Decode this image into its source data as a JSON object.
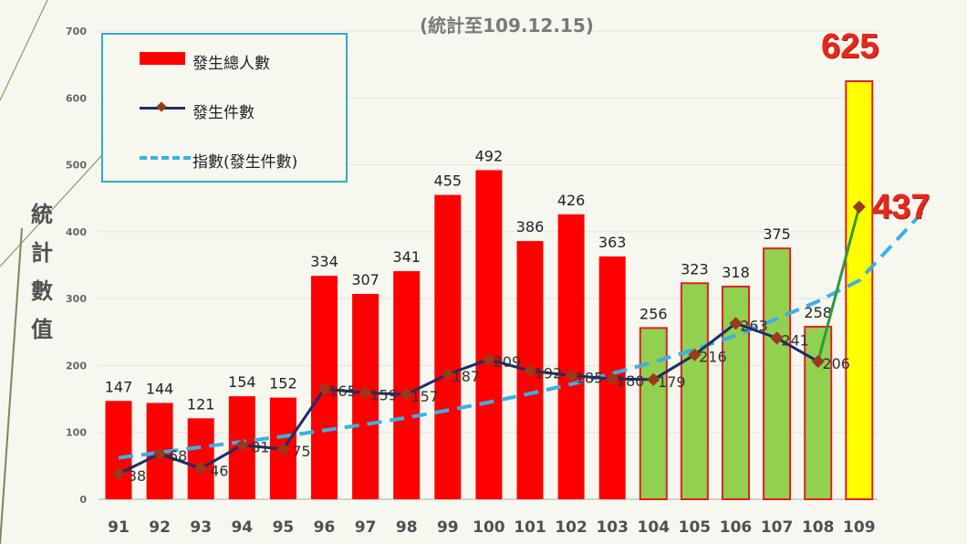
{
  "subtitle": "(統計至109.12.15)",
  "ylabel_chars": [
    "統",
    "計",
    "數",
    "值"
  ],
  "legend": {
    "bar_label": "發生總人數",
    "line_label": "發生件數",
    "trend_label": "指數(發生件數)"
  },
  "callouts": {
    "top": "625",
    "line_end": "437"
  },
  "colors": {
    "bar_red": "#ff0000",
    "bar_green": "#92d050",
    "bar_yellow": "#ffff00",
    "bar_outline": "#e02020",
    "line": "#1a2d6b",
    "marker": "#9a3a1a",
    "trend": "#3ab0e6",
    "callout": "#e8271d"
  },
  "chart_data": {
    "type": "bar",
    "categories": [
      "91",
      "92",
      "93",
      "94",
      "95",
      "96",
      "97",
      "98",
      "99",
      "100",
      "101",
      "102",
      "103",
      "104",
      "105",
      "106",
      "107",
      "108",
      "109"
    ],
    "ylim": [
      0,
      700
    ],
    "yticks": [
      0,
      100,
      200,
      300,
      400,
      500,
      600,
      700
    ],
    "grid": true,
    "series": [
      {
        "name": "發生總人數",
        "kind": "bar",
        "values": [
          147,
          144,
          121,
          154,
          152,
          334,
          307,
          341,
          455,
          492,
          386,
          426,
          363,
          256,
          323,
          318,
          375,
          258,
          625
        ],
        "bar_colors": [
          "red",
          "red",
          "red",
          "red",
          "red",
          "red",
          "red",
          "red",
          "red",
          "red",
          "red",
          "red",
          "red",
          "green",
          "green",
          "green",
          "green",
          "green",
          "yellow"
        ]
      },
      {
        "name": "發生件數",
        "kind": "line",
        "values": [
          38,
          68,
          46,
          81,
          75,
          165,
          159,
          157,
          187,
          209,
          192,
          185,
          180,
          179,
          216,
          263,
          241,
          206,
          437
        ],
        "labels": [
          "38",
          "68",
          "46",
          "81",
          "75",
          "165",
          "159",
          "157",
          "187",
          "209",
          "192",
          "185",
          "180",
          "179",
          "216",
          "263",
          "241",
          "206",
          ""
        ]
      },
      {
        "name": "指數(發生件數)",
        "kind": "trend",
        "values": [
          62,
          70,
          78,
          86,
          94,
          103,
          112,
          122,
          133,
          145,
          158,
          172,
          188,
          205,
          224,
          245,
          270,
          296,
          327
        ],
        "extend_to": 430
      }
    ]
  }
}
